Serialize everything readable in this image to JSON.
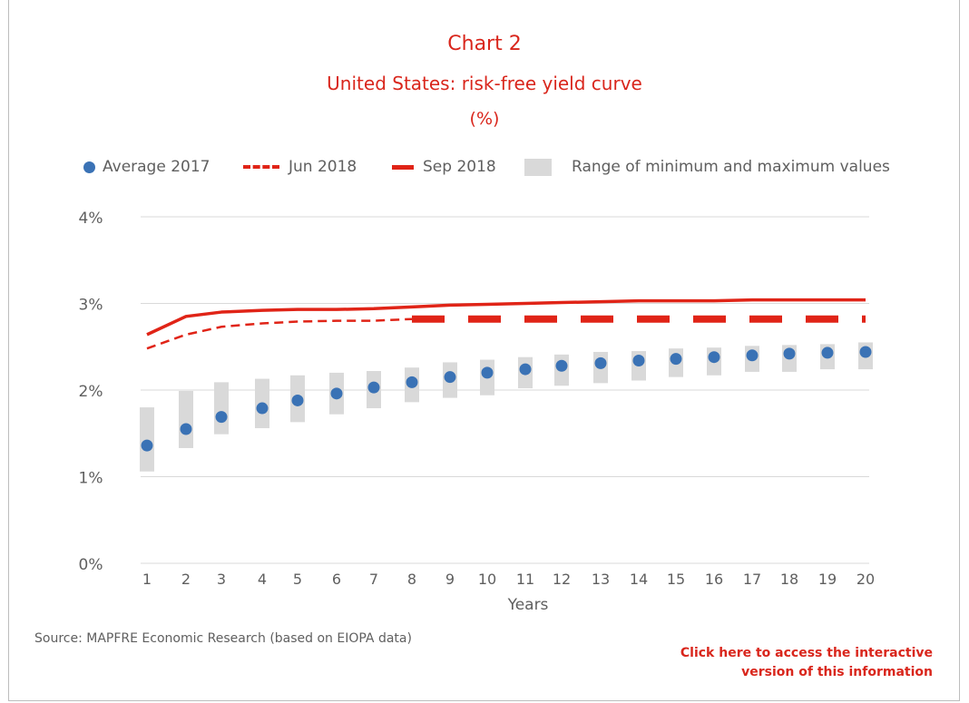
{
  "header": {
    "title": "Chart 2",
    "subtitle": "United States: risk-free yield curve",
    "unit": "(%)"
  },
  "legend": {
    "average": "Average 2017",
    "jun": "Jun 2018",
    "sep": "Sep 2018",
    "range": "Range of minimum and maximum values"
  },
  "footer": {
    "source": "Source: MAPFRE Economic Research (based on EIOPA data)",
    "link_line1": "Click here to access the interactive",
    "link_line2": "version of this information"
  },
  "colors": {
    "accent": "#d9261c",
    "series_red": "#e02417",
    "series_blue": "#3a72b5",
    "range_gray": "#d9d9d9",
    "grid": "#d9d9d9",
    "text": "#5f5f5f"
  },
  "chart_data": {
    "type": "line",
    "title": "Chart 2",
    "subtitle": "United States: risk-free yield curve",
    "xlabel": "Years",
    "ylabel": "",
    "x": [
      1,
      2,
      3,
      4,
      5,
      6,
      7,
      8,
      9,
      10,
      11,
      12,
      13,
      14,
      15,
      16,
      17,
      18,
      19,
      20
    ],
    "ylim": [
      0,
      4
    ],
    "yticks": [
      "0%",
      "1%",
      "2%",
      "3%",
      "4%"
    ],
    "grid": true,
    "legend_position": "top",
    "series": [
      {
        "name": "Sep 2018",
        "style": "solid-line",
        "values": [
          2.64,
          2.85,
          2.9,
          2.92,
          2.93,
          2.93,
          2.94,
          2.96,
          2.98,
          2.99,
          3.0,
          3.01,
          3.02,
          3.03,
          3.03,
          3.03,
          3.04,
          3.04,
          3.04,
          3.04
        ]
      },
      {
        "name": "Jun 2018",
        "style": "dashed-line",
        "values": [
          2.48,
          2.64,
          2.73,
          2.77,
          2.79,
          2.8,
          2.8,
          2.82,
          2.82,
          2.82,
          2.82,
          2.82,
          2.82,
          2.82,
          2.82,
          2.82,
          2.82,
          2.82,
          2.82,
          2.82
        ]
      },
      {
        "name": "Average 2017",
        "style": "markers",
        "values": [
          1.36,
          1.55,
          1.69,
          1.79,
          1.88,
          1.96,
          2.03,
          2.09,
          2.15,
          2.2,
          2.24,
          2.28,
          2.31,
          2.34,
          2.36,
          2.38,
          2.4,
          2.42,
          2.43,
          2.44
        ]
      },
      {
        "name": "Range of minimum and maximum values",
        "style": "range-bars",
        "min": [
          1.06,
          1.33,
          1.49,
          1.56,
          1.63,
          1.72,
          1.79,
          1.86,
          1.91,
          1.94,
          2.02,
          2.05,
          2.08,
          2.11,
          2.15,
          2.17,
          2.21,
          2.21,
          2.24,
          2.24
        ],
        "max": [
          1.8,
          1.99,
          2.09,
          2.13,
          2.17,
          2.2,
          2.22,
          2.26,
          2.32,
          2.35,
          2.38,
          2.41,
          2.44,
          2.45,
          2.48,
          2.49,
          2.51,
          2.52,
          2.53,
          2.55
        ]
      }
    ]
  }
}
